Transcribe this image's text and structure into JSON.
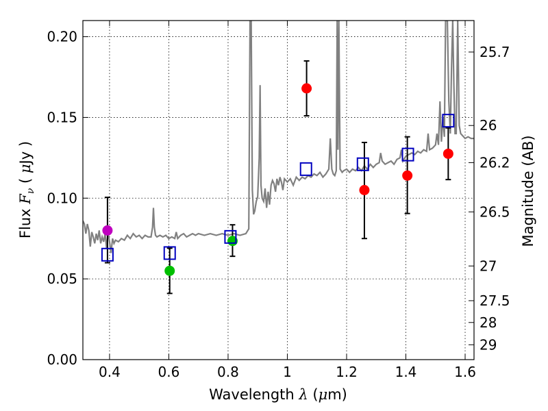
{
  "chart_data": {
    "type": "scatter",
    "xlabel": "Wavelength  λ (μm)",
    "ylabel": "Flux  F_ν  ( μJy )",
    "ylabel_right": "Magnitude (AB)",
    "xlim": [
      0.31,
      1.63
    ],
    "ylim": [
      0.0,
      0.21
    ],
    "grid": true,
    "x_ticks": [
      0.4,
      0.6,
      0.8,
      1.0,
      1.2,
      1.4,
      1.6
    ],
    "x_tick_labels": [
      "0.4",
      "0.6",
      "0.8",
      "1",
      "1.2",
      "1.4",
      "1.6"
    ],
    "y_ticks": [
      0.0,
      0.05,
      0.1,
      0.15,
      0.2
    ],
    "y_tick_labels": [
      "0.00",
      "0.05",
      "0.10",
      "0.15",
      "0.20"
    ],
    "right_ticks": [
      {
        "flux": 0.1905,
        "label": "25.7"
      },
      {
        "flux": 0.145,
        "label": "26"
      },
      {
        "flux": 0.122,
        "label": "26.2"
      },
      {
        "flux": 0.0915,
        "label": "26.5"
      },
      {
        "flux": 0.058,
        "label": "27"
      },
      {
        "flux": 0.0365,
        "label": "27.5"
      },
      {
        "flux": 0.023,
        "label": "28"
      },
      {
        "flux": 0.0092,
        "label": "29"
      }
    ],
    "colors": {
      "spectrum": "#808080",
      "magenta": "#bf00bf",
      "green": "#00bf00",
      "red": "#ff0000",
      "model": "#0000bf",
      "errorbar": "#000000"
    },
    "spectrum": [
      [
        0.31,
        0.086
      ],
      [
        0.315,
        0.084
      ],
      [
        0.32,
        0.078
      ],
      [
        0.325,
        0.084
      ],
      [
        0.33,
        0.08
      ],
      [
        0.335,
        0.07
      ],
      [
        0.34,
        0.079
      ],
      [
        0.345,
        0.076
      ],
      [
        0.35,
        0.072
      ],
      [
        0.355,
        0.078
      ],
      [
        0.36,
        0.074
      ],
      [
        0.365,
        0.08
      ],
      [
        0.37,
        0.072
      ],
      [
        0.375,
        0.076
      ],
      [
        0.38,
        0.073
      ],
      [
        0.385,
        0.078
      ],
      [
        0.39,
        0.069
      ],
      [
        0.395,
        0.079
      ],
      [
        0.4,
        0.073
      ],
      [
        0.405,
        0.066
      ],
      [
        0.41,
        0.075
      ],
      [
        0.415,
        0.072
      ],
      [
        0.42,
        0.074
      ],
      [
        0.43,
        0.073
      ],
      [
        0.44,
        0.075
      ],
      [
        0.45,
        0.074
      ],
      [
        0.46,
        0.077
      ],
      [
        0.47,
        0.075
      ],
      [
        0.48,
        0.078
      ],
      [
        0.49,
        0.076
      ],
      [
        0.5,
        0.077
      ],
      [
        0.51,
        0.075
      ],
      [
        0.52,
        0.077
      ],
      [
        0.53,
        0.076
      ],
      [
        0.54,
        0.076
      ],
      [
        0.545,
        0.082
      ],
      [
        0.548,
        0.094
      ],
      [
        0.551,
        0.082
      ],
      [
        0.555,
        0.077
      ],
      [
        0.56,
        0.076
      ],
      [
        0.57,
        0.077
      ],
      [
        0.58,
        0.076
      ],
      [
        0.59,
        0.077
      ],
      [
        0.6,
        0.075
      ],
      [
        0.61,
        0.076
      ],
      [
        0.62,
        0.075
      ],
      [
        0.625,
        0.079
      ],
      [
        0.63,
        0.075
      ],
      [
        0.64,
        0.077
      ],
      [
        0.65,
        0.078
      ],
      [
        0.66,
        0.076
      ],
      [
        0.67,
        0.077
      ],
      [
        0.68,
        0.078
      ],
      [
        0.69,
        0.077
      ],
      [
        0.7,
        0.078
      ],
      [
        0.72,
        0.077
      ],
      [
        0.74,
        0.078
      ],
      [
        0.76,
        0.077
      ],
      [
        0.78,
        0.078
      ],
      [
        0.8,
        0.077
      ],
      [
        0.82,
        0.078
      ],
      [
        0.84,
        0.077
      ],
      [
        0.86,
        0.078
      ],
      [
        0.87,
        0.081
      ],
      [
        0.874,
        0.21
      ],
      [
        0.878,
        0.21
      ],
      [
        0.882,
        0.105
      ],
      [
        0.886,
        0.09
      ],
      [
        0.89,
        0.092
      ],
      [
        0.895,
        0.098
      ],
      [
        0.9,
        0.101
      ],
      [
        0.905,
        0.125
      ],
      [
        0.908,
        0.17
      ],
      [
        0.911,
        0.108
      ],
      [
        0.915,
        0.1
      ],
      [
        0.92,
        0.098
      ],
      [
        0.925,
        0.106
      ],
      [
        0.93,
        0.094
      ],
      [
        0.935,
        0.104
      ],
      [
        0.94,
        0.096
      ],
      [
        0.945,
        0.108
      ],
      [
        0.95,
        0.111
      ],
      [
        0.955,
        0.109
      ],
      [
        0.96,
        0.104
      ],
      [
        0.965,
        0.112
      ],
      [
        0.97,
        0.108
      ],
      [
        0.975,
        0.113
      ],
      [
        0.98,
        0.11
      ],
      [
        0.985,
        0.105
      ],
      [
        0.99,
        0.112
      ],
      [
        1.0,
        0.11
      ],
      [
        1.01,
        0.112
      ],
      [
        1.02,
        0.108
      ],
      [
        1.03,
        0.113
      ],
      [
        1.04,
        0.111
      ],
      [
        1.05,
        0.113
      ],
      [
        1.06,
        0.112
      ],
      [
        1.07,
        0.114
      ],
      [
        1.08,
        0.113
      ],
      [
        1.09,
        0.115
      ],
      [
        1.1,
        0.114
      ],
      [
        1.11,
        0.116
      ],
      [
        1.12,
        0.113
      ],
      [
        1.13,
        0.115
      ],
      [
        1.14,
        0.118
      ],
      [
        1.145,
        0.137
      ],
      [
        1.15,
        0.118
      ],
      [
        1.155,
        0.115
      ],
      [
        1.16,
        0.114
      ],
      [
        1.165,
        0.117
      ],
      [
        1.168,
        0.21
      ],
      [
        1.171,
        0.13
      ],
      [
        1.174,
        0.21
      ],
      [
        1.178,
        0.118
      ],
      [
        1.185,
        0.116
      ],
      [
        1.19,
        0.117
      ],
      [
        1.2,
        0.118
      ],
      [
        1.21,
        0.116
      ],
      [
        1.22,
        0.118
      ],
      [
        1.23,
        0.117
      ],
      [
        1.24,
        0.119
      ],
      [
        1.25,
        0.117
      ],
      [
        1.26,
        0.12
      ],
      [
        1.27,
        0.118
      ],
      [
        1.28,
        0.121
      ],
      [
        1.29,
        0.119
      ],
      [
        1.3,
        0.121
      ],
      [
        1.31,
        0.122
      ],
      [
        1.315,
        0.128
      ],
      [
        1.32,
        0.123
      ],
      [
        1.33,
        0.121
      ],
      [
        1.34,
        0.122
      ],
      [
        1.35,
        0.123
      ],
      [
        1.36,
        0.121
      ],
      [
        1.37,
        0.124
      ],
      [
        1.38,
        0.125
      ],
      [
        1.385,
        0.13
      ],
      [
        1.39,
        0.123
      ],
      [
        1.4,
        0.126
      ],
      [
        1.41,
        0.127
      ],
      [
        1.42,
        0.128
      ],
      [
        1.43,
        0.127
      ],
      [
        1.44,
        0.129
      ],
      [
        1.45,
        0.128
      ],
      [
        1.46,
        0.13
      ],
      [
        1.47,
        0.129
      ],
      [
        1.475,
        0.14
      ],
      [
        1.48,
        0.13
      ],
      [
        1.49,
        0.131
      ],
      [
        1.5,
        0.133
      ],
      [
        1.505,
        0.14
      ],
      [
        1.51,
        0.133
      ],
      [
        1.515,
        0.16
      ],
      [
        1.52,
        0.135
      ],
      [
        1.525,
        0.15
      ],
      [
        1.53,
        0.138
      ],
      [
        1.534,
        0.21
      ],
      [
        1.54,
        0.21
      ],
      [
        1.545,
        0.16
      ],
      [
        1.55,
        0.14
      ],
      [
        1.554,
        0.18
      ],
      [
        1.558,
        0.21
      ],
      [
        1.562,
        0.17
      ],
      [
        1.566,
        0.14
      ],
      [
        1.57,
        0.14
      ],
      [
        1.575,
        0.21
      ],
      [
        1.58,
        0.145
      ],
      [
        1.585,
        0.14
      ],
      [
        1.59,
        0.139
      ],
      [
        1.6,
        0.137
      ],
      [
        1.61,
        0.138
      ],
      [
        1.62,
        0.137
      ],
      [
        1.63,
        0.137
      ]
    ],
    "observed": [
      {
        "x": 0.393,
        "y": 0.08,
        "yerr_low": 0.06,
        "yerr_high": 0.1005,
        "color": "magenta"
      },
      {
        "x": 0.603,
        "y": 0.055,
        "yerr_low": 0.041,
        "yerr_high": 0.069,
        "color": "green"
      },
      {
        "x": 0.815,
        "y": 0.0735,
        "yerr_low": 0.064,
        "yerr_high": 0.0835,
        "color": "green"
      },
      {
        "x": 1.065,
        "y": 0.168,
        "yerr_low": 0.151,
        "yerr_high": 0.185,
        "color": "red"
      },
      {
        "x": 1.26,
        "y": 0.105,
        "yerr_low": 0.075,
        "yerr_high": 0.1345,
        "color": "red"
      },
      {
        "x": 1.405,
        "y": 0.114,
        "yerr_low": 0.0905,
        "yerr_high": 0.138,
        "color": "red"
      },
      {
        "x": 1.543,
        "y": 0.1275,
        "yerr_low": 0.1115,
        "yerr_high": 0.1435,
        "color": "red"
      }
    ],
    "model_points": [
      {
        "x": 0.393,
        "y": 0.065
      },
      {
        "x": 0.603,
        "y": 0.066
      },
      {
        "x": 0.808,
        "y": 0.076
      },
      {
        "x": 1.063,
        "y": 0.118
      },
      {
        "x": 1.255,
        "y": 0.121
      },
      {
        "x": 1.407,
        "y": 0.127
      },
      {
        "x": 1.543,
        "y": 0.148
      }
    ]
  }
}
